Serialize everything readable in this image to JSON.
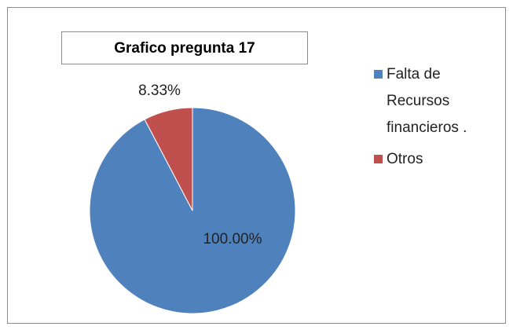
{
  "chart_data": {
    "type": "pie",
    "title": "Grafico pregunta 17",
    "categories": [
      "Falta de Recursos financieros .",
      "Otros"
    ],
    "values": [
      100.0,
      8.33
    ],
    "value_labels": [
      "100.00%",
      "8.33%"
    ],
    "colors": [
      "#4f81bd",
      "#c0504d"
    ],
    "legend": "right"
  }
}
